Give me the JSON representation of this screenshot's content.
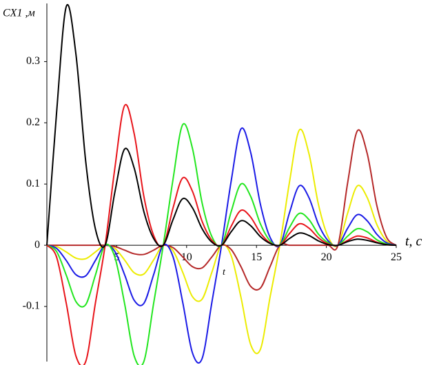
{
  "chart_data": {
    "type": "line",
    "y_label": "CX1 ,м",
    "x_label": "t, c",
    "annotation": "t",
    "x": [
      0,
      0.69,
      1.39,
      2.08,
      2.78,
      3.47,
      4.17,
      4.86,
      5.56,
      6.25,
      6.94,
      7.64,
      8.33,
      9.03,
      9.72,
      10.42,
      11.11,
      11.81,
      12.5,
      13.19,
      13.89,
      14.58,
      15.28,
      15.97,
      16.67,
      17.36,
      18.06,
      18.75,
      19.44,
      20.14,
      20.83,
      21.53,
      22.22,
      22.92,
      23.61,
      24.31,
      25
    ],
    "series": [
      {
        "color": "#ecec00",
        "values": [
          0,
          -0.002,
          -0.011,
          -0.021,
          -0.022,
          -0.011,
          0,
          -0.005,
          -0.024,
          -0.045,
          -0.047,
          -0.024,
          0,
          -0.009,
          -0.044,
          -0.084,
          -0.088,
          -0.044,
          0,
          -0.017,
          -0.085,
          -0.162,
          -0.17,
          -0.085,
          0,
          0.103,
          0.188,
          0.15,
          0.066,
          0.013,
          0,
          0.053,
          0.097,
          0.078,
          0.034,
          0.007,
          0
        ]
      },
      {
        "color": "#b52828",
        "values": [
          0,
          0,
          0,
          0,
          0,
          0,
          0,
          -0.002,
          -0.008,
          -0.014,
          -0.015,
          -0.008,
          0,
          -0.004,
          -0.019,
          -0.035,
          -0.037,
          -0.019,
          0,
          -0.007,
          -0.035,
          -0.067,
          -0.07,
          -0.035,
          0,
          0,
          0,
          0,
          0,
          0,
          0,
          0.103,
          0.187,
          0.15,
          0.065,
          0.013,
          0
        ]
      },
      {
        "color": "#1a1ae6",
        "values": [
          0,
          -0.005,
          -0.025,
          -0.048,
          -0.05,
          -0.025,
          0,
          -0.01,
          -0.048,
          -0.09,
          -0.095,
          -0.048,
          0,
          -0.019,
          -0.093,
          -0.176,
          -0.185,
          -0.093,
          0,
          0.105,
          0.19,
          0.152,
          0.067,
          0.013,
          0,
          0.053,
          0.097,
          0.078,
          0.034,
          0.007,
          0,
          0.028,
          0.05,
          0.04,
          0.018,
          0.004,
          0
        ]
      },
      {
        "color": "#22e61e",
        "values": [
          0,
          -0.01,
          -0.049,
          -0.092,
          -0.097,
          -0.049,
          0,
          -0.019,
          -0.095,
          -0.181,
          -0.19,
          -0.095,
          0,
          0.108,
          0.197,
          0.158,
          0.069,
          0.014,
          0,
          0.055,
          0.1,
          0.08,
          0.035,
          0.007,
          0,
          0.029,
          0.052,
          0.042,
          0.018,
          0.004,
          0,
          0.015,
          0.027,
          0.022,
          0.009,
          0.002,
          0
        ]
      },
      {
        "color": "#e8141a",
        "values": [
          0,
          -0.019,
          -0.095,
          -0.181,
          -0.19,
          -0.095,
          0,
          0.125,
          0.228,
          0.182,
          0.08,
          0.016,
          0,
          0.061,
          0.11,
          0.088,
          0.039,
          0.008,
          0,
          0.031,
          0.057,
          0.046,
          0.02,
          0.004,
          0,
          0.019,
          0.035,
          0.028,
          0.012,
          0.002,
          0,
          0.008,
          0.015,
          0.012,
          0.005,
          0.001,
          0
        ]
      },
      {
        "color": "#000000",
        "values": [
          0,
          0.215,
          0.39,
          0.312,
          0.137,
          0.027,
          0,
          0.086,
          0.157,
          0.126,
          0.055,
          0.011,
          0,
          0.042,
          0.076,
          0.061,
          0.027,
          0.005,
          0,
          0.022,
          0.04,
          0.032,
          0.014,
          0.003,
          0,
          0.011,
          0.02,
          0.016,
          0.007,
          0.001,
          0,
          0.006,
          0.01,
          0.008,
          0.004,
          0.001,
          0
        ]
      }
    ],
    "xlim": [
      0,
      25
    ],
    "ylim": [
      -0.19,
      0.395
    ],
    "xticks": [
      5,
      10,
      15,
      20,
      25
    ],
    "yticks": [
      -0.1,
      0,
      0.1,
      0.2,
      0.3
    ]
  }
}
